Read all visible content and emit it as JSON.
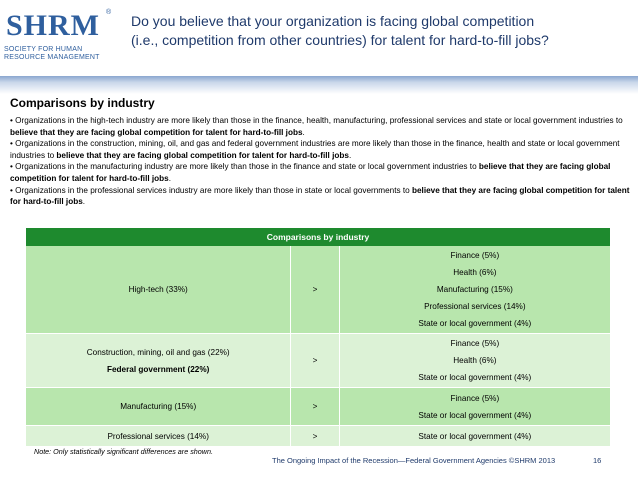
{
  "header": {
    "logo_mark": "SHRM",
    "logo_reg": "®",
    "logo_subtitle": "SOCIETY FOR HUMAN RESOURCE MANAGEMENT",
    "title_line1": "Do you believe that your organization is facing global competition",
    "title_line2": "(i.e., competition from other countries) for talent for hard-to-fill jobs?"
  },
  "section": {
    "title": "Comparisons by industry",
    "bullets": [
      {
        "text": "• Organizations in the high-tech industry are more likely than those in the finance, health, manufacturing, professional services and state or local government industries to ",
        "bold": "believe that they are facing global competition for talent for hard-to-fill jobs",
        "end": "."
      },
      {
        "text": "• Organizations in the construction, mining, oil, and gas and federal government industries are more likely than those in the finance, health and state or local government industries to ",
        "bold": "believe that they are facing global competition for talent for hard-to-fill jobs",
        "end": "."
      },
      {
        "text": "• Organizations in the manufacturing industry are more likely than those in the finance and state or local government industries to ",
        "bold": "believe that they are facing global competition for talent for hard-to-fill jobs",
        "end": "."
      },
      {
        "text": "• Organizations in the professional services industry are more likely than those in state or local governments to ",
        "bold": "believe that they are facing global competition for talent for hard-to-fill jobs",
        "end": "."
      }
    ]
  },
  "table": {
    "header": "Comparisons by industry",
    "rows": [
      {
        "left": [
          "High-tech (33%)"
        ],
        "op": ">",
        "right": [
          "Finance (5%)",
          "Health (6%)",
          "Manufacturing (15%)",
          "Professional services (14%)",
          "State or local government (4%)"
        ]
      },
      {
        "left": [
          "Construction, mining, oil and gas (22%)",
          "Federal government (22%)"
        ],
        "op": ">",
        "right": [
          "Finance (5%)",
          "Health (6%)",
          "State or local government (4%)"
        ]
      },
      {
        "left": [
          "Manufacturing (15%)"
        ],
        "op": ">",
        "right": [
          "Finance (5%)",
          "State or local government (4%)"
        ]
      },
      {
        "left": [
          "Professional services (14%)"
        ],
        "op": ">",
        "right": [
          "State or local government (4%)"
        ]
      }
    ]
  },
  "note": "Note: Only statistically significant differences are shown.",
  "footer": {
    "text": "The Ongoing Impact of the Recession—Federal Government Agencies ©SHRM 2013",
    "page": "16"
  },
  "colors": {
    "table_header": "#1e8a2e",
    "row_dark": "#b8e6ad",
    "row_light": "#dcf2d6",
    "title_text": "#1f3a6b",
    "logo": "#2f5f9e"
  }
}
